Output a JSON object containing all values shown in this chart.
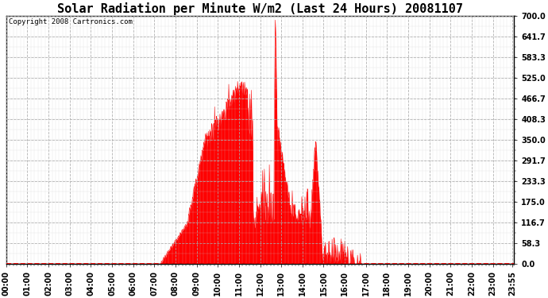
{
  "title": "Solar Radiation per Minute W/m2 (Last 24 Hours) 20081107",
  "copyright": "Copyright 2008 Cartronics.com",
  "fill_color": "#ff0000",
  "line_color": "#ff0000",
  "background_color": "#ffffff",
  "plot_bg_color": "#ffffff",
  "grid_color": "#aaaaaa",
  "border_color": "#000000",
  "ylim": [
    0.0,
    700.0
  ],
  "yticks": [
    0.0,
    58.3,
    116.7,
    175.0,
    233.3,
    291.7,
    350.0,
    408.3,
    466.7,
    525.0,
    583.3,
    641.7,
    700.0
  ],
  "xlabel_rotation": 90,
  "title_fontsize": 11,
  "tick_fontsize": 7,
  "copyright_fontsize": 6.5,
  "x_tick_step_minutes": 60
}
